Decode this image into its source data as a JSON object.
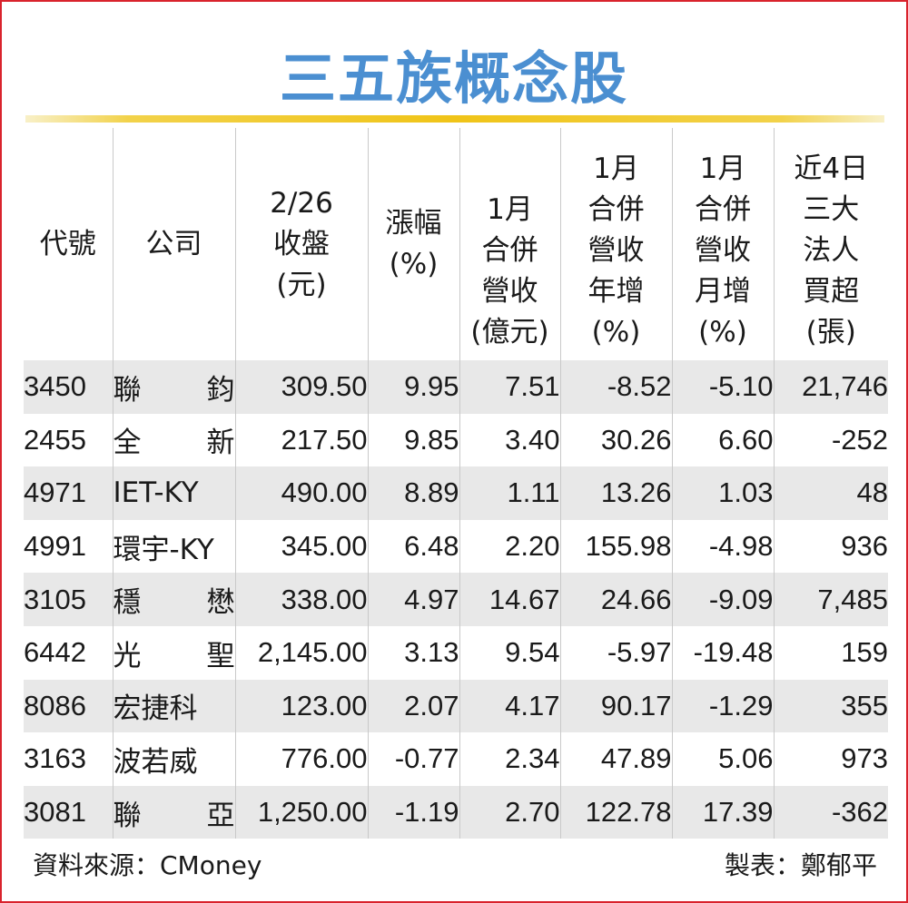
{
  "title": "三五族概念股",
  "table": {
    "headers": [
      "代號",
      "公司",
      "2/26\n收盤\n(元)",
      "漲幅\n(%)",
      "1月\n合併\n營收\n(億元)",
      "1月\n合併\n營收\n年增\n(%)",
      "1月\n合併\n營收\n月增\n(%)",
      "近4日\n三大\n法人\n買超\n(張)"
    ],
    "rows": [
      {
        "code": "3450",
        "company": "聯 鈞",
        "close": "309.50",
        "change": "9.95",
        "revenue": "7.51",
        "yoy": "-8.52",
        "mom": "-5.10",
        "net_buy": "21,746"
      },
      {
        "code": "2455",
        "company": "全 新",
        "close": "217.50",
        "change": "9.85",
        "revenue": "3.40",
        "yoy": "30.26",
        "mom": "6.60",
        "net_buy": "-252"
      },
      {
        "code": "4971",
        "company": "IET-KY",
        "close": "490.00",
        "change": "8.89",
        "revenue": "1.11",
        "yoy": "13.26",
        "mom": "1.03",
        "net_buy": "48"
      },
      {
        "code": "4991",
        "company": "環宇-KY",
        "close": "345.00",
        "change": "6.48",
        "revenue": "2.20",
        "yoy": "155.98",
        "mom": "-4.98",
        "net_buy": "936"
      },
      {
        "code": "3105",
        "company": "穩 懋",
        "close": "338.00",
        "change": "4.97",
        "revenue": "14.67",
        "yoy": "24.66",
        "mom": "-9.09",
        "net_buy": "7,485"
      },
      {
        "code": "6442",
        "company": "光 聖",
        "close": "2,145.00",
        "change": "3.13",
        "revenue": "9.54",
        "yoy": "-5.97",
        "mom": "-19.48",
        "net_buy": "159"
      },
      {
        "code": "8086",
        "company": "宏捷科",
        "close": "123.00",
        "change": "2.07",
        "revenue": "4.17",
        "yoy": "90.17",
        "mom": "-1.29",
        "net_buy": "355"
      },
      {
        "code": "3163",
        "company": "波若威",
        "close": "776.00",
        "change": "-0.77",
        "revenue": "2.34",
        "yoy": "47.89",
        "mom": "5.06",
        "net_buy": "973"
      },
      {
        "code": "3081",
        "company": "聯 亞",
        "close": "1,250.00",
        "change": "-1.19",
        "revenue": "2.70",
        "yoy": "122.78",
        "mom": "17.39",
        "net_buy": "-362"
      }
    ]
  },
  "footer": {
    "source": "資料來源：CMoney",
    "maker": "製表：鄭郁平"
  },
  "colors": {
    "title": "#4b8fd1",
    "border": "#d9232d",
    "rule": "#f0c418",
    "stripe": "#e8e8e8"
  }
}
